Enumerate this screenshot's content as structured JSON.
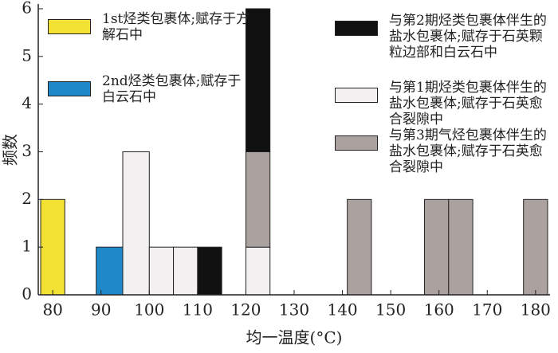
{
  "chart_data": {
    "type": "histogram",
    "x_label": "均一温度(°C)",
    "y_label": "频数",
    "bins": [
      77.5,
      82.5,
      89,
      94.5,
      100,
      105,
      110,
      115,
      120,
      125,
      141,
      146,
      157,
      162,
      167,
      177.5,
      182.5
    ],
    "series": [
      {
        "name": "1st烃类包裹体;赋存于方解石中",
        "color": "#f2e132",
        "values": [
          2,
          0,
          0,
          0,
          0,
          0,
          0,
          0,
          0,
          0,
          0,
          0,
          0,
          0,
          0,
          0
        ]
      },
      {
        "name": "2nd烃类包裹体;赋存于白云石中",
        "color": "#1f88c9",
        "values": [
          0,
          0,
          1,
          0,
          0,
          0,
          0,
          0,
          0,
          0,
          0,
          0,
          0,
          0,
          0,
          0
        ]
      },
      {
        "name": "与第1期烃类包裹体伴生的盐水包裹体;赋存于石英愈合裂隙中",
        "color": "#f2f0f0",
        "values": [
          0,
          0,
          0,
          3,
          1,
          1,
          0,
          0,
          1,
          0,
          0,
          0,
          0,
          0,
          0,
          0
        ]
      },
      {
        "name": "与第3期气烃包裹体伴生的盐水包裹体;赋存于石英愈合裂隙中",
        "color": "#aba19f",
        "values": [
          0,
          0,
          0,
          0,
          0,
          0,
          0,
          0,
          2,
          0,
          2,
          0,
          2,
          2,
          0,
          2
        ]
      },
      {
        "name": "与第2期烃类包裹体伴生的盐水包裹体;赋存于石英颗粒边部和白云石中",
        "color": "#111111",
        "values": [
          0,
          0,
          0,
          0,
          0,
          0,
          1,
          0,
          3,
          0,
          0,
          0,
          0,
          0,
          0,
          0
        ]
      }
    ],
    "xlim": [
      77,
      183
    ],
    "xticks": [
      80,
      90,
      100,
      110,
      120,
      130,
      140,
      150,
      160,
      170,
      180
    ],
    "ylim": [
      0,
      6.1
    ],
    "yticks": [
      0,
      1,
      2,
      3,
      4,
      5,
      6
    ],
    "stacked": true
  }
}
